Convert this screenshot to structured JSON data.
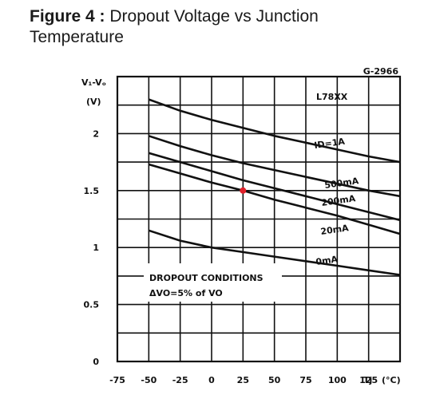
{
  "figure": {
    "prefix": "Figure 4 :",
    "title": "Dropout Voltage vs Junction Temperature"
  },
  "chart_data": {
    "type": "line",
    "code": "G-2966",
    "device_label": "L78XX",
    "ylabel_line1": "V₁-Vₒ",
    "ylabel_line2": "(V)",
    "xlabel": "Tj",
    "xunit": "(°C)",
    "xlim": [
      -75,
      150
    ],
    "ylim": [
      0,
      2.5
    ],
    "x_ticks": [
      -75,
      -50,
      -25,
      0,
      25,
      50,
      75,
      100,
      125
    ],
    "x_tick_labels": [
      "-75",
      "-50",
      "-25",
      "0",
      "25",
      "50",
      "75",
      "100",
      "125"
    ],
    "y_ticks": [
      0,
      0.5,
      1,
      1.5,
      2
    ],
    "y_tick_labels": [
      "0",
      "0.5",
      "1",
      "1.5",
      "2"
    ],
    "grid": true,
    "series": [
      {
        "name": "ID=1A",
        "x": [
          -50,
          -25,
          0,
          25,
          50,
          75,
          100,
          125,
          150
        ],
        "y": [
          2.3,
          2.2,
          2.12,
          2.05,
          1.98,
          1.92,
          1.86,
          1.8,
          1.75
        ]
      },
      {
        "name": "500mA",
        "x": [
          -50,
          -25,
          0,
          25,
          50,
          75,
          100,
          125,
          150
        ],
        "y": [
          1.98,
          1.89,
          1.81,
          1.74,
          1.68,
          1.62,
          1.56,
          1.5,
          1.45
        ]
      },
      {
        "name": "200mA",
        "x": [
          -50,
          -25,
          0,
          25,
          50,
          75,
          100,
          125,
          150
        ],
        "y": [
          1.83,
          1.75,
          1.67,
          1.59,
          1.52,
          1.45,
          1.38,
          1.31,
          1.24
        ]
      },
      {
        "name": "20mA",
        "x": [
          -50,
          -25,
          0,
          25,
          50,
          75,
          100,
          125,
          150
        ],
        "y": [
          1.73,
          1.65,
          1.57,
          1.5,
          1.42,
          1.35,
          1.28,
          1.2,
          1.12
        ]
      },
      {
        "name": "0mA",
        "x": [
          -50,
          -25,
          0,
          25,
          50,
          75,
          100,
          125,
          150
        ],
        "y": [
          1.15,
          1.06,
          1.0,
          0.96,
          0.92,
          0.88,
          0.84,
          0.8,
          0.76
        ]
      }
    ],
    "series_label_texts": [
      "ID=1A",
      "500mA",
      "200mA",
      "20mA",
      "0mA"
    ],
    "marker": {
      "x": 25,
      "y": 1.5,
      "color": "#e0202a"
    },
    "annotation_line1": "DROPOUT CONDITIONS",
    "annotation_line2": "ΔVO=5% of VO"
  }
}
